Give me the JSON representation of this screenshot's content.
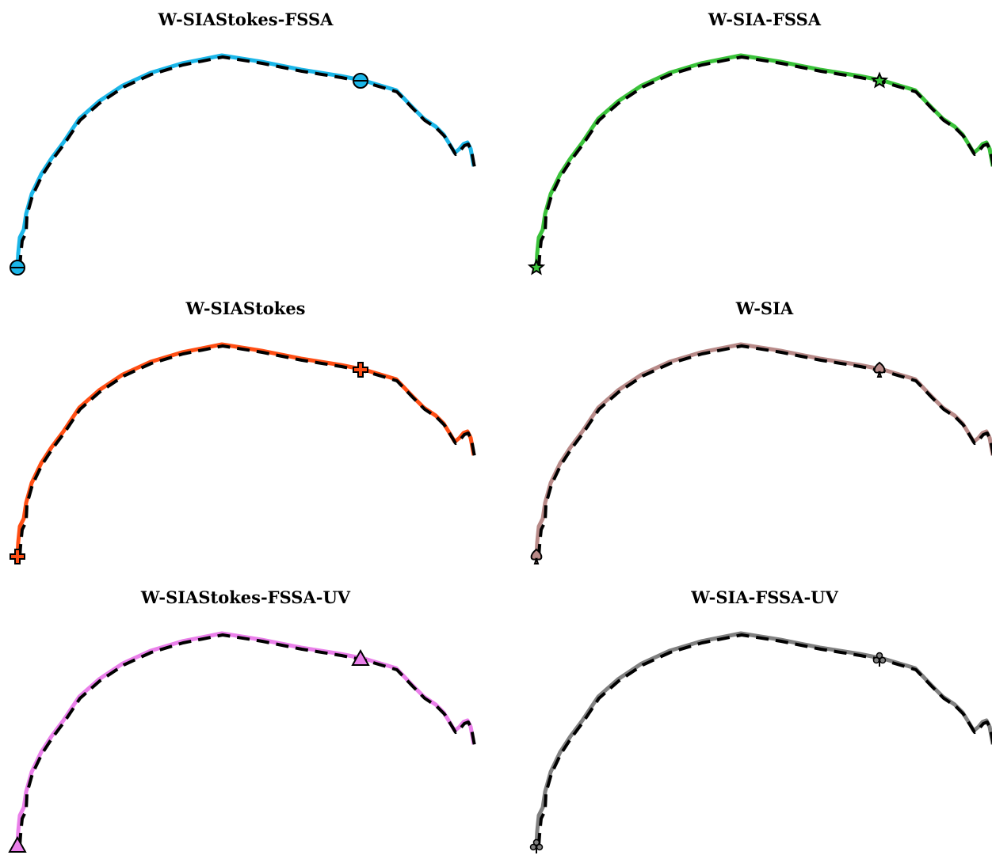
{
  "chart_data": [
    {
      "type": "line",
      "title": "W-SIAStokes-FSSA",
      "series": [
        {
          "color": "#1bb6e8",
          "marker": "circle-icon"
        },
        {
          "color": "#000000"
        }
      ]
    },
    {
      "type": "line",
      "title": "W-SIA-FSSA",
      "series": [
        {
          "color": "#3ac23a",
          "marker": "star-icon"
        },
        {
          "color": "#000000"
        }
      ]
    },
    {
      "type": "line",
      "title": "W-SIAStokes",
      "series": [
        {
          "color": "#ff4e14",
          "marker": "plus-icon"
        },
        {
          "color": "#000000"
        }
      ]
    },
    {
      "type": "line",
      "title": "W-SIA",
      "series": [
        {
          "color": "#b88a88",
          "marker": "spade-icon"
        },
        {
          "color": "#000000"
        }
      ]
    },
    {
      "type": "line",
      "title": "W-SIAStokes-FSSA-UV",
      "series": [
        {
          "color": "#ea80ea",
          "marker": "triangle-icon"
        },
        {
          "color": "#000000"
        }
      ]
    },
    {
      "type": "line",
      "title": "W-SIA-FSSA-UV",
      "series": [
        {
          "color": "#808080",
          "marker": "club-icon"
        },
        {
          "color": "#000000"
        }
      ]
    }
  ]
}
